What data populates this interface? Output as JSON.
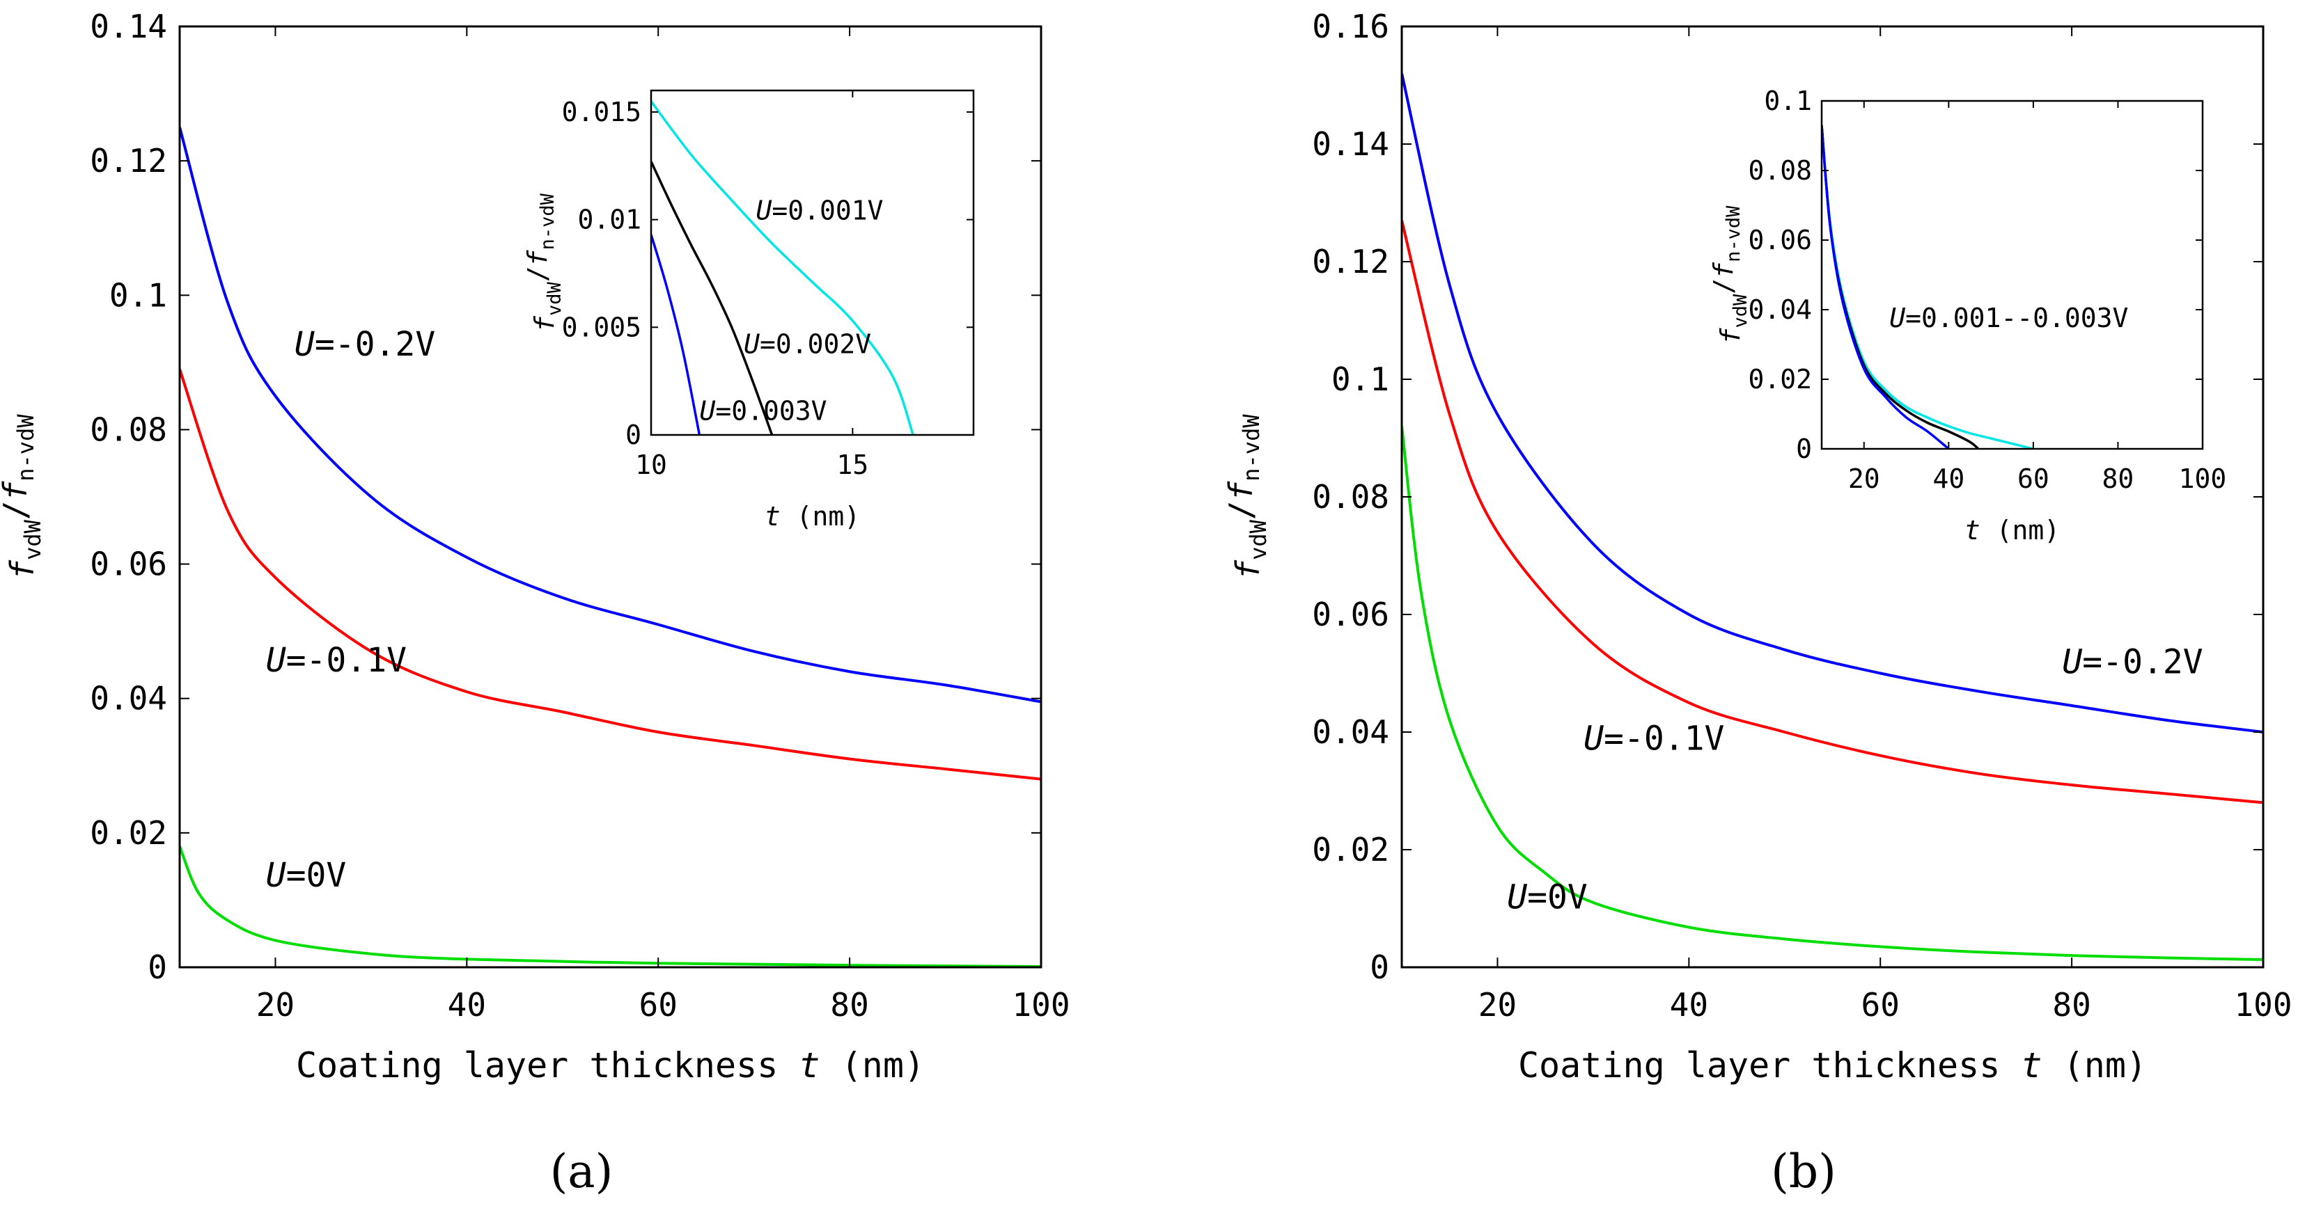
{
  "chart_data": [
    {
      "type": "line",
      "panel_label": "(a)",
      "xlabel": "Coating layer thickness",
      "xlabel_var": "t",
      "xlabel_unit": "(nm)",
      "ylabel": "f_vdW / f_n-vdW",
      "xlim": [
        10,
        100
      ],
      "ylim": [
        0,
        0.14
      ],
      "xticks": [
        20,
        40,
        60,
        80,
        100
      ],
      "xtick_labels": [
        "20",
        "40",
        "60",
        "80",
        "100"
      ],
      "yticks": [
        0,
        0.02,
        0.04,
        0.06,
        0.08,
        0.1,
        0.12,
        0.14
      ],
      "ytick_labels": [
        "0",
        "0.02",
        "0.04",
        "0.06",
        "0.08",
        "0.1",
        "0.12",
        "0.14"
      ],
      "series": [
        {
          "name": "U=-0.2V",
          "color": "#0000ff",
          "x": [
            10,
            15,
            20,
            30,
            40,
            50,
            60,
            70,
            80,
            90,
            100
          ],
          "y": [
            0.125,
            0.099,
            0.085,
            0.07,
            0.061,
            0.055,
            0.051,
            0.047,
            0.044,
            0.042,
            0.0395
          ]
        },
        {
          "name": "U=-0.1V",
          "color": "#ff0000",
          "x": [
            10,
            15,
            20,
            30,
            40,
            50,
            60,
            70,
            80,
            90,
            100
          ],
          "y": [
            0.089,
            0.068,
            0.058,
            0.047,
            0.041,
            0.038,
            0.035,
            0.033,
            0.031,
            0.0295,
            0.028
          ]
        },
        {
          "name": "U=0V",
          "color": "#00dd00",
          "x": [
            10,
            12,
            15,
            20,
            30,
            40,
            60,
            80,
            100
          ],
          "y": [
            0.018,
            0.011,
            0.007,
            0.004,
            0.002,
            0.0012,
            0.0006,
            0.0003,
            0.0001
          ]
        }
      ],
      "annotations": [
        {
          "text": "U=-0.2V",
          "x": 22,
          "y": 0.091
        },
        {
          "text": "U=-0.1V",
          "x": 19,
          "y": 0.044
        },
        {
          "text": "U=0V",
          "x": 19,
          "y": 0.012
        }
      ],
      "inset": {
        "xlabel_var": "t",
        "xlabel_unit": "(nm)",
        "ylabel": "f_vdW / f_n-vdW",
        "xlim": [
          10,
          18
        ],
        "ylim": [
          0,
          0.016
        ],
        "xticks": [
          10,
          15
        ],
        "xtick_labels": [
          "10",
          "15"
        ],
        "yticks": [
          0,
          0.005,
          0.01,
          0.015
        ],
        "ytick_labels": [
          "0",
          "0.005",
          "0.01",
          "0.015"
        ],
        "series": [
          {
            "name": "U=0.001V",
            "color": "#00e5e5",
            "x": [
              10,
              11,
              12,
              13,
              14,
              15,
              16,
              16.5
            ],
            "y": [
              0.0155,
              0.013,
              0.0109,
              0.0089,
              0.0071,
              0.0053,
              0.0027,
              0
            ]
          },
          {
            "name": "U=0.002V",
            "color": "#000000",
            "x": [
              10,
              10.5,
              11,
              11.5,
              12,
              12.5,
              13
            ],
            "y": [
              0.0127,
              0.0107,
              0.0088,
              0.007,
              0.005,
              0.0026,
              0
            ]
          },
          {
            "name": "U=0.003V",
            "color": "#0000ff",
            "x": [
              10,
              10.4,
              10.8,
              11.2
            ],
            "y": [
              0.0093,
              0.0068,
              0.0038,
              0
            ]
          }
        ],
        "annotations": [
          {
            "text": "U=0.001V",
            "x": 12.6,
            "y": 0.01
          },
          {
            "text": "U=0.002V",
            "x": 12.3,
            "y": 0.0038
          },
          {
            "text": "U=0.003V",
            "x": 11.2,
            "y": 0.0007
          }
        ]
      }
    },
    {
      "type": "line",
      "panel_label": "(b)",
      "xlabel": "Coating layer thickness",
      "xlabel_var": "t",
      "xlabel_unit": "(nm)",
      "ylabel": "f_vdW / f_n-vdW",
      "xlim": [
        10,
        100
      ],
      "ylim": [
        0,
        0.16
      ],
      "xticks": [
        20,
        40,
        60,
        80,
        100
      ],
      "xtick_labels": [
        "20",
        "40",
        "60",
        "80",
        "100"
      ],
      "yticks": [
        0,
        0.02,
        0.04,
        0.06,
        0.08,
        0.1,
        0.12,
        0.14,
        0.16
      ],
      "ytick_labels": [
        "0",
        "0.02",
        "0.04",
        "0.06",
        "0.08",
        "0.1",
        "0.12",
        "0.14",
        "0.16"
      ],
      "series": [
        {
          "name": "U=-0.2V",
          "color": "#0000ff",
          "x": [
            10,
            15,
            20,
            30,
            40,
            50,
            60,
            70,
            80,
            90,
            100
          ],
          "y": [
            0.152,
            0.116,
            0.094,
            0.072,
            0.06,
            0.054,
            0.05,
            0.047,
            0.0445,
            0.042,
            0.04
          ]
        },
        {
          "name": "U=-0.1V",
          "color": "#ff0000",
          "x": [
            10,
            15,
            20,
            30,
            40,
            50,
            60,
            70,
            80,
            90,
            100
          ],
          "y": [
            0.127,
            0.094,
            0.074,
            0.055,
            0.045,
            0.04,
            0.036,
            0.033,
            0.031,
            0.0295,
            0.028
          ]
        },
        {
          "name": "U=0V",
          "color": "#00dd00",
          "x": [
            10,
            12,
            15,
            20,
            25,
            30,
            40,
            50,
            60,
            70,
            80,
            90,
            100
          ],
          "y": [
            0.092,
            0.064,
            0.042,
            0.024,
            0.016,
            0.011,
            0.0068,
            0.0048,
            0.0035,
            0.0026,
            0.002,
            0.0016,
            0.0013
          ]
        }
      ],
      "annotations": [
        {
          "text": "U=-0.2V",
          "x": 79,
          "y": 0.05
        },
        {
          "text": "U=-0.1V",
          "x": 29,
          "y": 0.037
        },
        {
          "text": "U=0V",
          "x": 21,
          "y": 0.01
        }
      ],
      "inset": {
        "xlabel_var": "t",
        "xlabel_unit": "(nm)",
        "ylabel": "f_vdW / f_n-vdW",
        "xlim": [
          10,
          100
        ],
        "ylim": [
          0,
          0.1
        ],
        "xticks": [
          20,
          40,
          60,
          80,
          100
        ],
        "xtick_labels": [
          "20",
          "40",
          "60",
          "80",
          "100"
        ],
        "yticks": [
          0,
          0.02,
          0.04,
          0.06,
          0.08,
          0.1
        ],
        "ytick_labels": [
          "0",
          "0.02",
          "0.04",
          "0.06",
          "0.08",
          "0.1"
        ],
        "series": [
          {
            "name": "U=0.001V",
            "color": "#00e5e5",
            "x": [
              10,
              12,
              15,
              20,
              25,
              30,
              35,
              40,
              45,
              50,
              55,
              60
            ],
            "y": [
              0.093,
              0.065,
              0.044,
              0.025,
              0.017,
              0.012,
              0.009,
              0.0065,
              0.0045,
              0.003,
              0.0015,
              0
            ]
          },
          {
            "name": "U=0.002V",
            "color": "#000000",
            "x": [
              10,
              12,
              15,
              20,
              25,
              30,
              35,
              40,
              45,
              47
            ],
            "y": [
              0.093,
              0.064,
              0.043,
              0.024,
              0.016,
              0.011,
              0.0075,
              0.005,
              0.002,
              0
            ]
          },
          {
            "name": "U=0.003V",
            "color": "#0000ff",
            "x": [
              10,
              12,
              15,
              20,
              25,
              30,
              35,
              40
            ],
            "y": [
              0.093,
              0.064,
              0.042,
              0.023,
              0.015,
              0.009,
              0.005,
              0
            ]
          }
        ],
        "annotations": [
          {
            "text": "U=0.001--0.003V",
            "x": 26,
            "y": 0.035
          }
        ]
      }
    }
  ]
}
